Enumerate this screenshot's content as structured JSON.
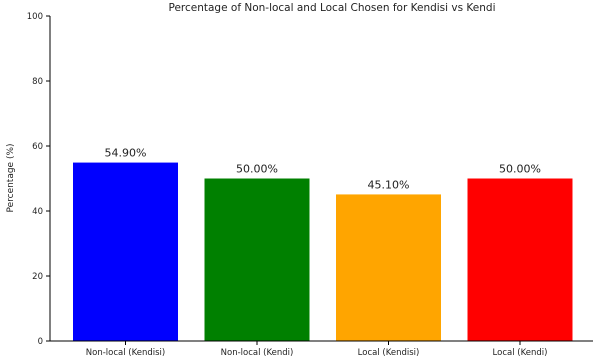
{
  "chart_data": {
    "type": "bar",
    "title": "Percentage of Non-local and Local Chosen for Kendisi vs Kendi",
    "xlabel": "",
    "ylabel": "Percentage (%)",
    "ylim": [
      0,
      100
    ],
    "yticks": [
      0,
      20,
      40,
      60,
      80,
      100
    ],
    "categories": [
      "Non-local (Kendisi)",
      "Non-local (Kendi)",
      "Local (Kendisi)",
      "Local (Kendi)"
    ],
    "values": [
      54.9,
      50.0,
      45.1,
      50.0
    ],
    "value_labels": [
      "54.90%",
      "50.00%",
      "45.10%",
      "50.00%"
    ],
    "colors": [
      "#0000ff",
      "#008000",
      "#ffa500",
      "#ff0000"
    ],
    "grid": false,
    "legend": "none"
  }
}
